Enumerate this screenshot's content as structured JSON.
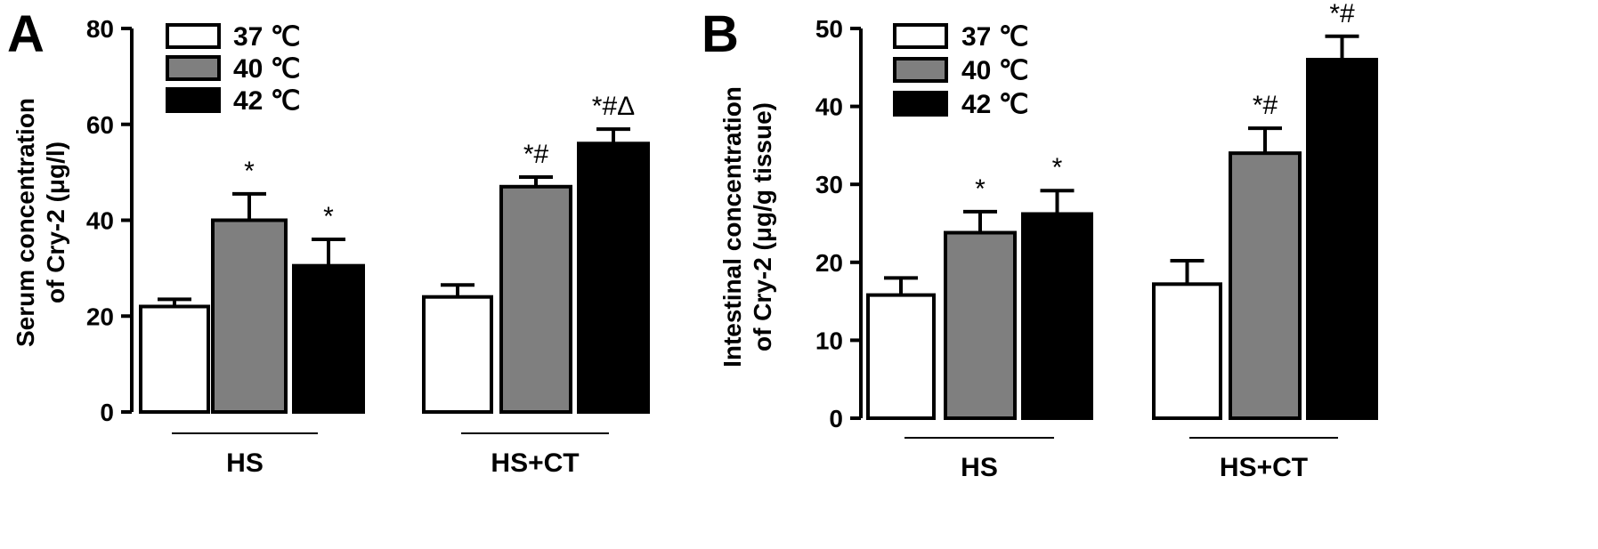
{
  "colors": {
    "37": "#ffffff",
    "40": "#7f7f7f",
    "42": "#000000"
  },
  "chart_data": [
    {
      "type": "bar",
      "panel": "A",
      "ylabel_line1": "Serum concentration",
      "ylabel_line2": "of Cry-2 (μg/l)",
      "ylim": [
        0,
        80
      ],
      "yticks": [
        0,
        20,
        40,
        60,
        80
      ],
      "groups": [
        "HS",
        "HS+CT"
      ],
      "series": [
        {
          "name": "37 ℃",
          "values": [
            22,
            24
          ],
          "errors": [
            1.5,
            2.5
          ],
          "annotations": [
            "",
            ""
          ]
        },
        {
          "name": "40 ℃",
          "values": [
            40,
            47
          ],
          "errors": [
            5.5,
            2
          ],
          "annotations": [
            "*",
            "*#"
          ]
        },
        {
          "name": "42 ℃",
          "values": [
            30.5,
            56
          ],
          "errors": [
            5.5,
            3
          ],
          "annotations": [
            "*",
            "*#Δ"
          ]
        }
      ]
    },
    {
      "type": "bar",
      "panel": "B",
      "ylabel_line1": "Intestinal concentration",
      "ylabel_line2": "of Cry-2 (μg/g tissue)",
      "ylim": [
        0,
        50
      ],
      "yticks": [
        0,
        10,
        20,
        30,
        40,
        50
      ],
      "groups": [
        "HS",
        "HS+CT"
      ],
      "series": [
        {
          "name": "37 ℃",
          "values": [
            15.8,
            17.2
          ],
          "errors": [
            2.2,
            3
          ],
          "annotations": [
            "",
            ""
          ]
        },
        {
          "name": "40 ℃",
          "values": [
            23.8,
            34
          ],
          "errors": [
            2.7,
            3.2
          ],
          "annotations": [
            "*",
            "*#"
          ]
        },
        {
          "name": "42 ℃",
          "values": [
            26.2,
            46
          ],
          "errors": [
            3,
            3
          ],
          "annotations": [
            "*",
            "*#"
          ]
        }
      ]
    }
  ]
}
